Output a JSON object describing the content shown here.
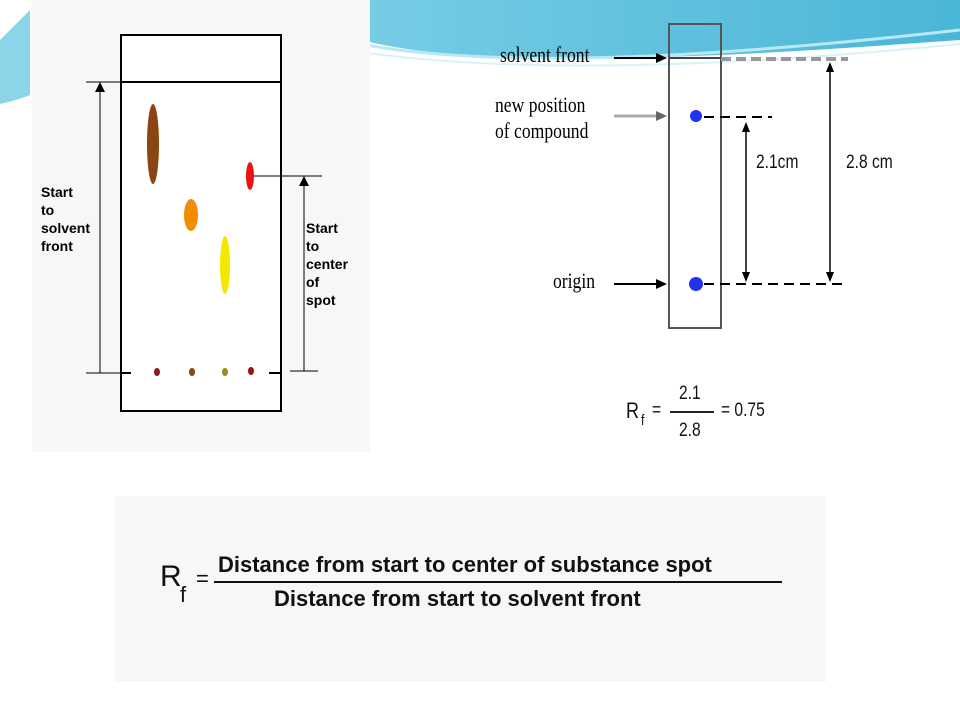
{
  "colors": {
    "accent_blue": "#3fb8d6",
    "compound_dot": "#2233ee",
    "paper_panel": "#f7f7f7"
  },
  "left_diagram": {
    "start_to_solvent_front": "Start\nto\nsolvent\nfront",
    "start_to_center_of_spot": "Start\nto\ncenter\nof\nspot",
    "spot_colors": [
      "#8b4513",
      "#f28c00",
      "#f5e800",
      "#e81414"
    ],
    "origin_dot_colors": [
      "#8b1a1a",
      "#8b4513",
      "#9a8a20",
      "#a01010"
    ]
  },
  "right_diagram": {
    "solvent_front": "solvent front",
    "new_position_line1": "new position",
    "new_position_line2": "of compound",
    "origin": "origin",
    "distance_spot": "2.1cm",
    "distance_front": "2.8 cm",
    "rf_symbol": "R",
    "rf_subscript": "f",
    "equals": "=",
    "numerator": "2.1",
    "denominator": "2.8",
    "result": "= 0.75"
  },
  "formula": {
    "rf_symbol": "R",
    "rf_subscript": "f",
    "equals": "=",
    "numerator": "Distance from start to center of substance spot",
    "denominator": "Distance from start to solvent front"
  }
}
